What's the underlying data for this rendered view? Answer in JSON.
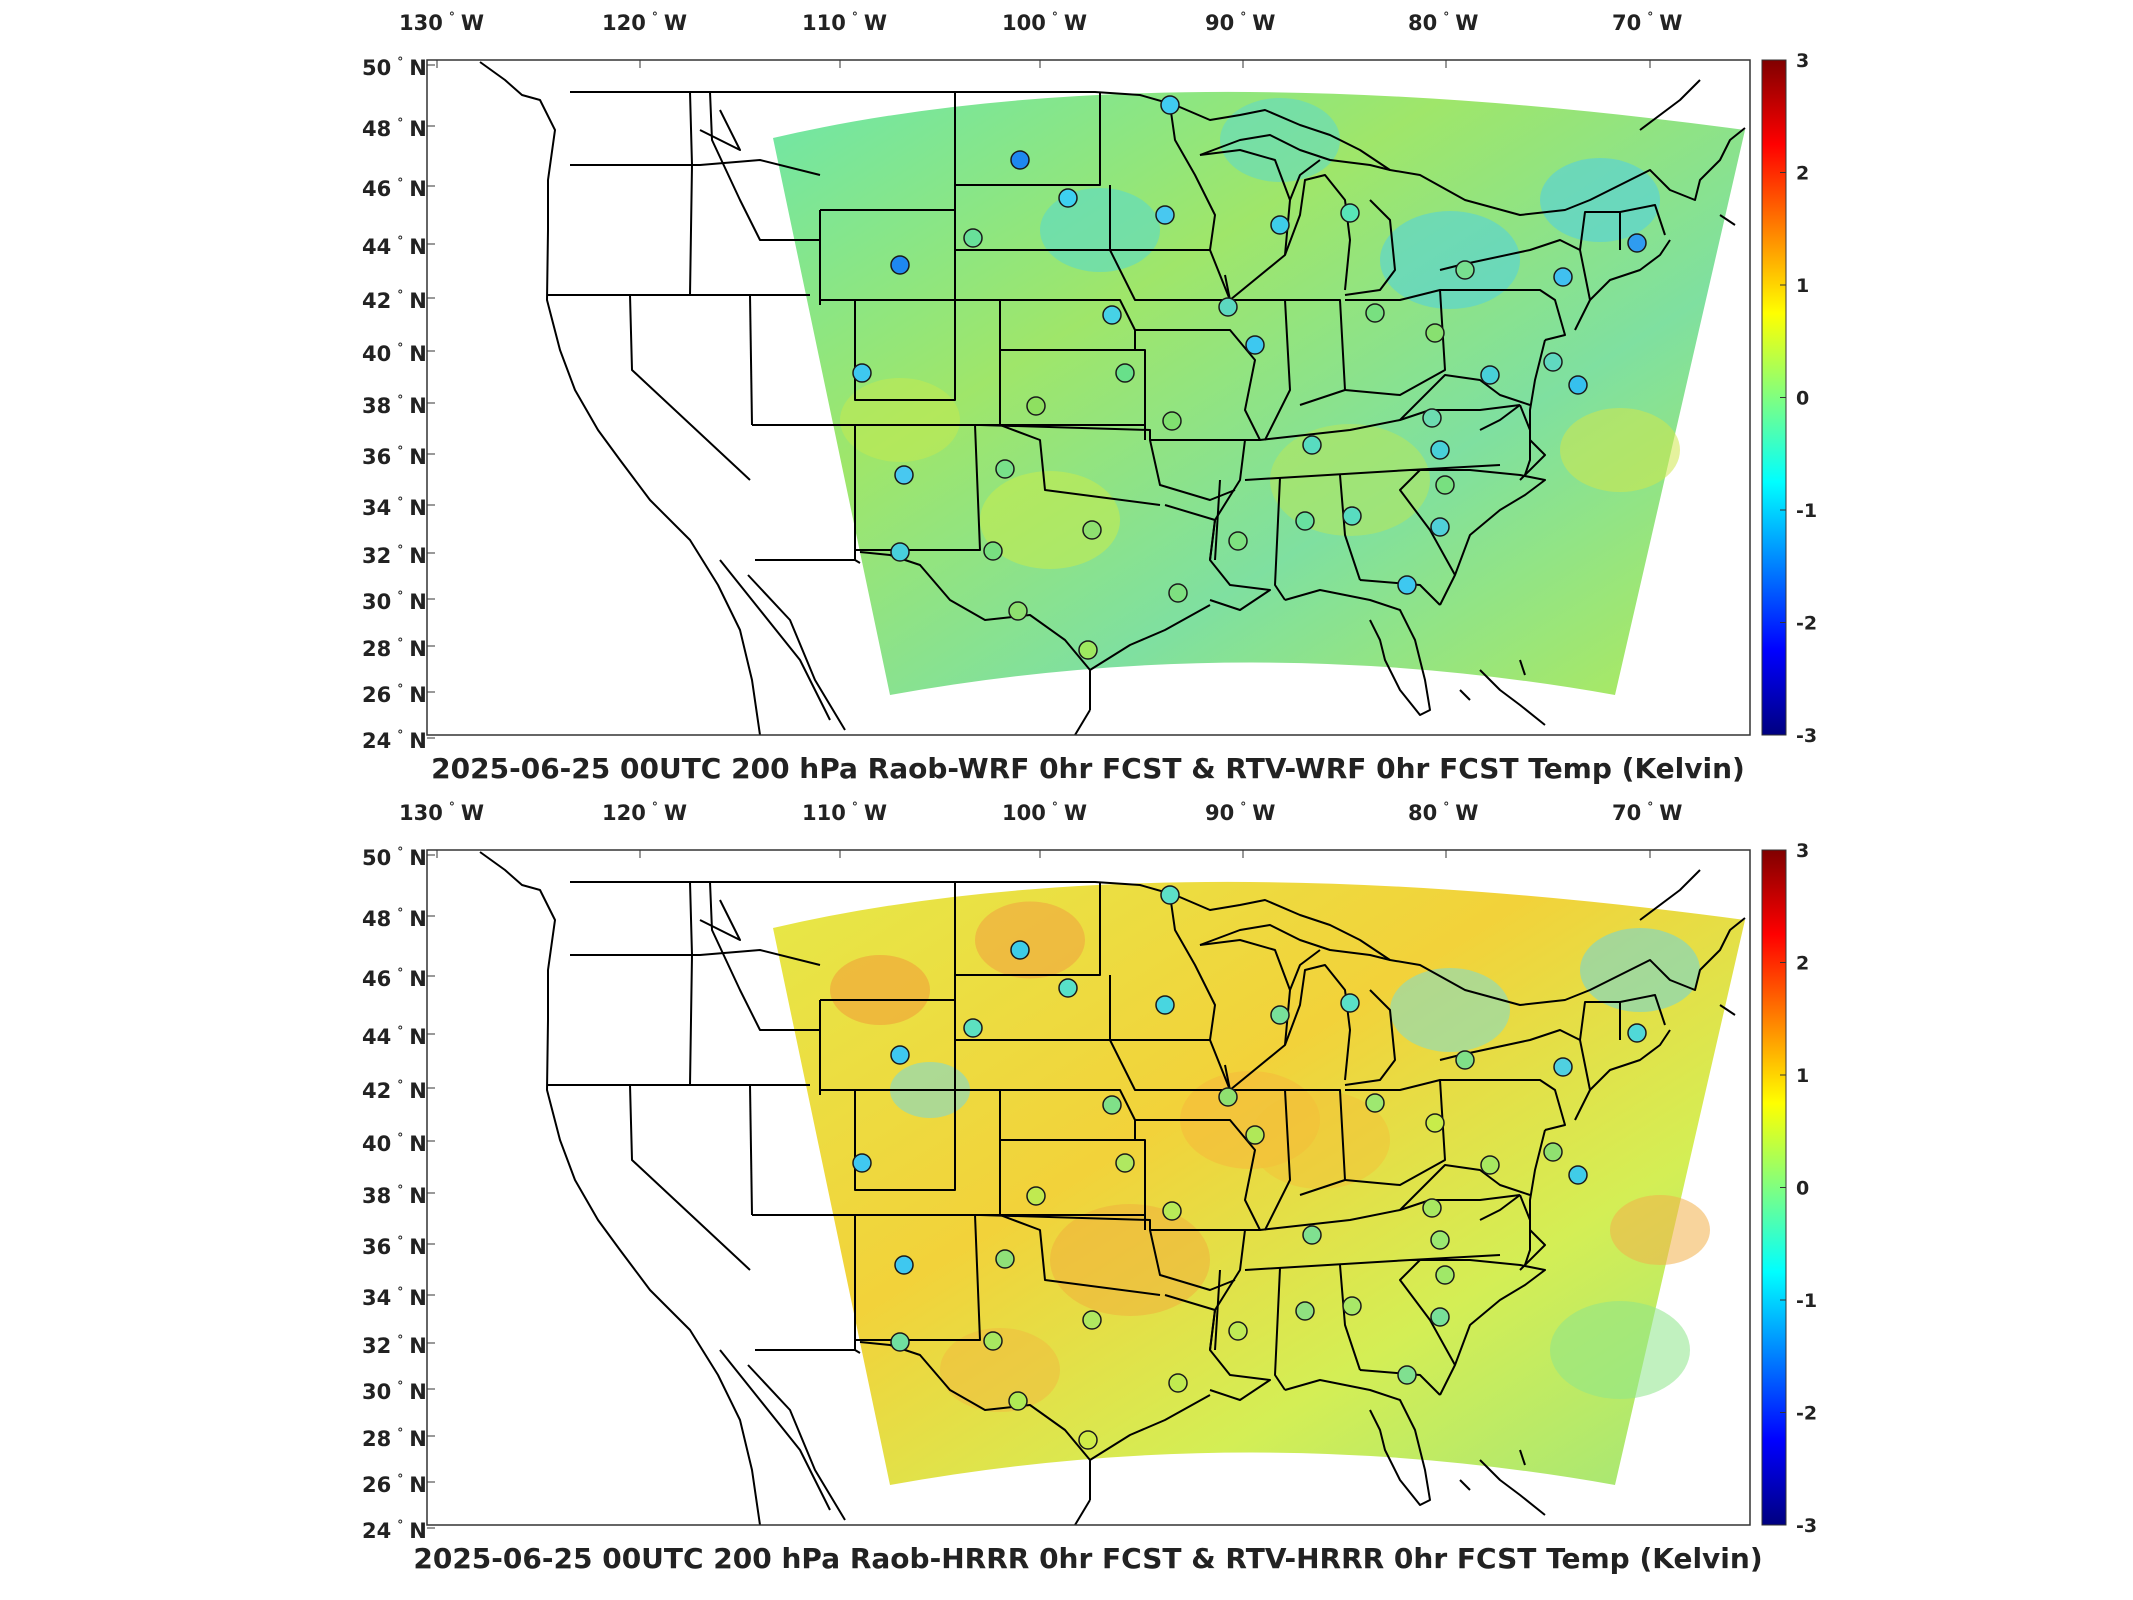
{
  "panels": [
    {
      "id": "wrf",
      "title": "2025-06-25 00UTC 200 hPa Raob-WRF 0hr FCST & RTV-WRF 0hr FCST Temp (Kelvin)",
      "background_color": "#8fe07a",
      "stations": [
        {
          "name": "s1",
          "color": "#2fa6ff"
        },
        {
          "name": "s2",
          "color": "#1e8bf0"
        },
        {
          "name": "s3",
          "color": "#3ee0e0"
        },
        {
          "name": "s4",
          "color": "#27d8f0"
        },
        {
          "name": "s5",
          "color": "#58e6b8"
        },
        {
          "name": "s6",
          "color": "#28c8f0"
        }
      ]
    },
    {
      "id": "hrrr",
      "title": "2025-06-25 00UTC 200 hPa Raob-HRRR 0hr FCST & RTV-HRRR 0hr FCST Temp (Kelvin)",
      "background_color": "#e0ee50"
    }
  ],
  "axes": {
    "longitude_ticks": [
      {
        "num": "130",
        "hem": "W"
      },
      {
        "num": "120",
        "hem": "W"
      },
      {
        "num": "110",
        "hem": "W"
      },
      {
        "num": "100",
        "hem": "W"
      },
      {
        "num": "90",
        "hem": "W"
      },
      {
        "num": "80",
        "hem": "W"
      },
      {
        "num": "70",
        "hem": "W"
      }
    ],
    "latitude_ticks": [
      {
        "num": "50",
        "hem": "N"
      },
      {
        "num": "48",
        "hem": "N"
      },
      {
        "num": "46",
        "hem": "N"
      },
      {
        "num": "44",
        "hem": "N"
      },
      {
        "num": "42",
        "hem": "N"
      },
      {
        "num": "40",
        "hem": "N"
      },
      {
        "num": "38",
        "hem": "N"
      },
      {
        "num": "36",
        "hem": "N"
      },
      {
        "num": "34",
        "hem": "N"
      },
      {
        "num": "32",
        "hem": "N"
      },
      {
        "num": "30",
        "hem": "N"
      },
      {
        "num": "28",
        "hem": "N"
      },
      {
        "num": "26",
        "hem": "N"
      },
      {
        "num": "24",
        "hem": "N"
      }
    ],
    "degree_symbol": "°"
  },
  "colorbar": {
    "ticks": [
      "3",
      "2",
      "1",
      "0",
      "-1",
      "-2",
      "-3"
    ],
    "colormap": "jet",
    "colors": [
      "#800000",
      "#ff0000",
      "#ff8000",
      "#ffff00",
      "#80ff80",
      "#00ffff",
      "#0080ff",
      "#0000ff",
      "#000080"
    ]
  }
}
